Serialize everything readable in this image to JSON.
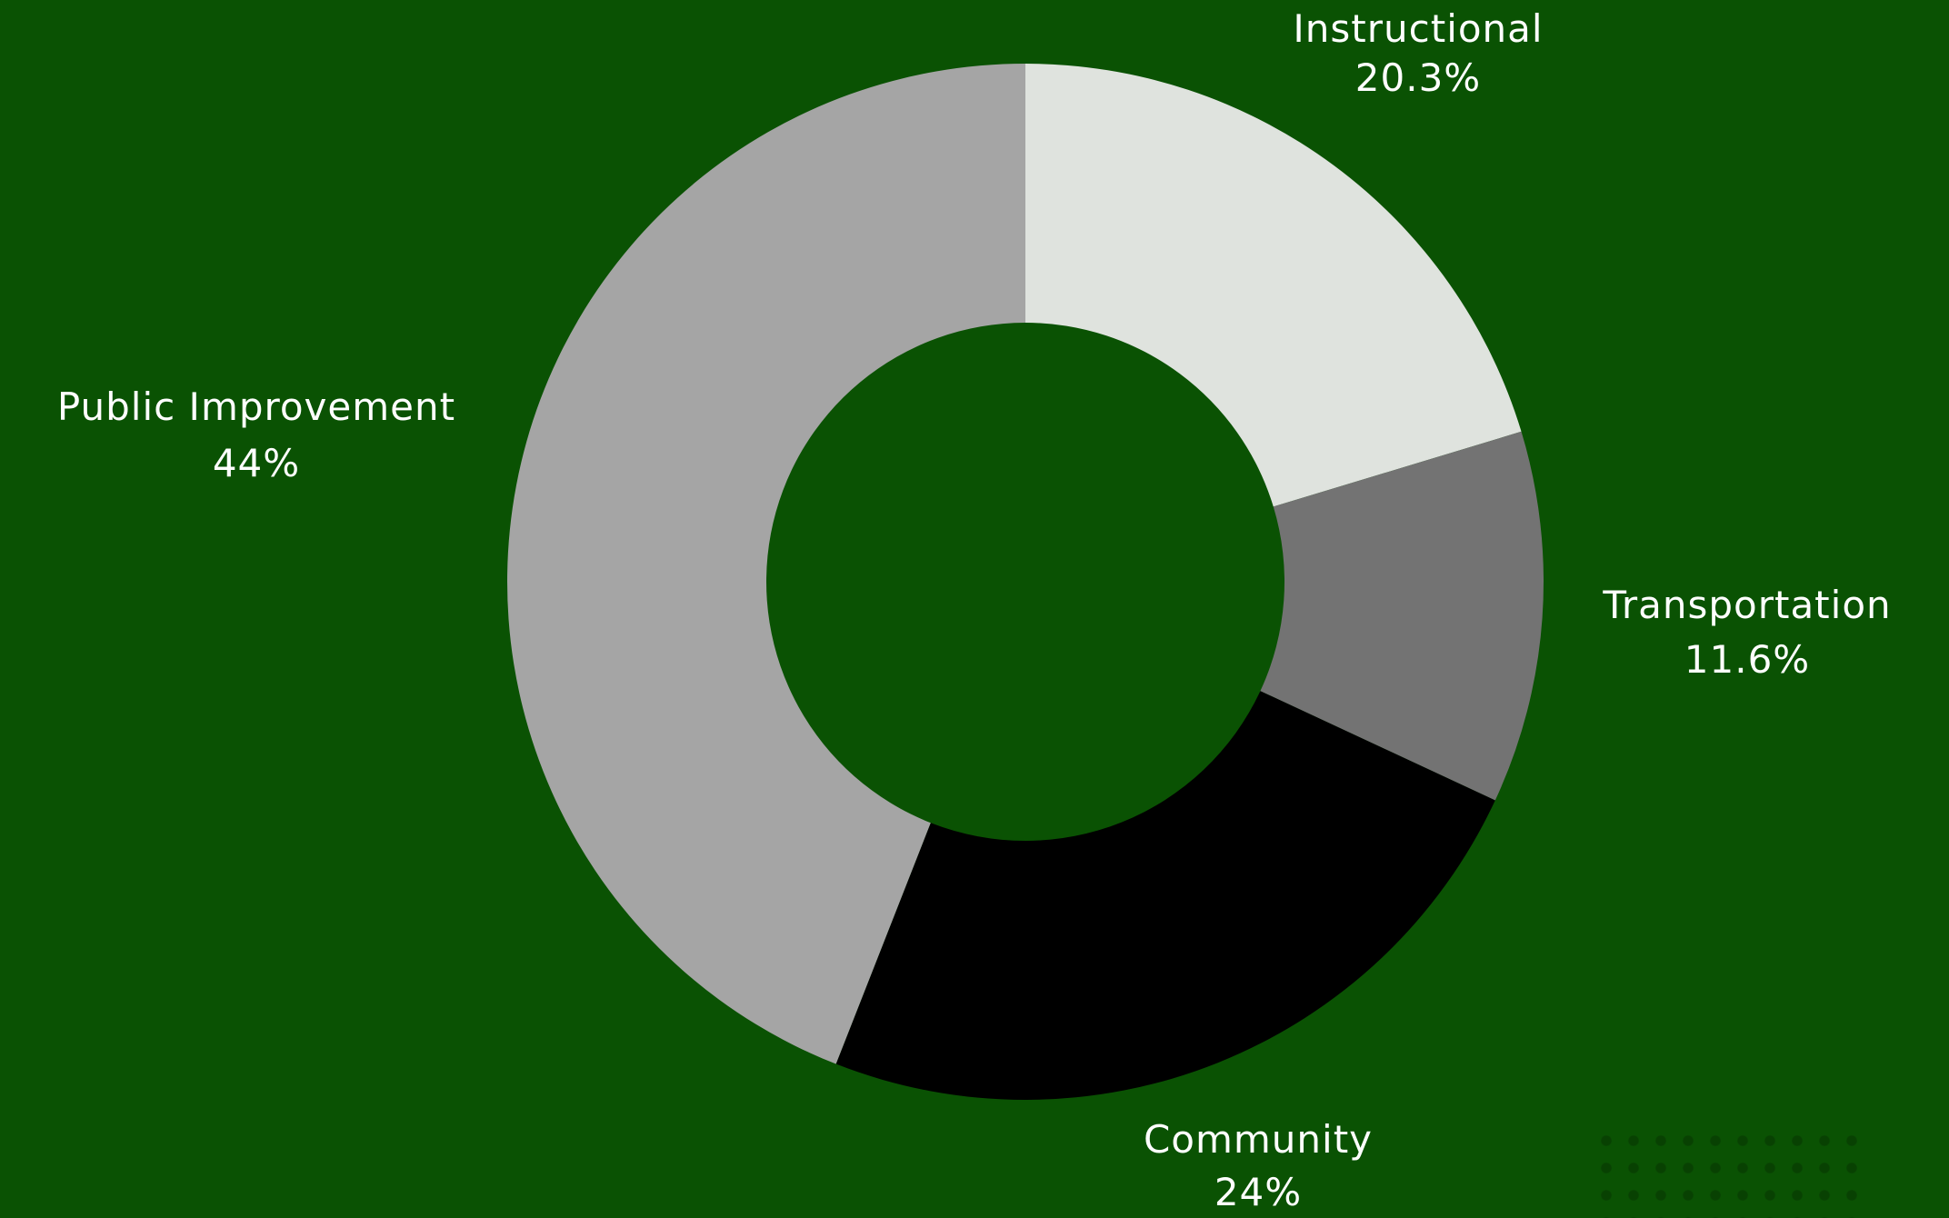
{
  "chart_data": {
    "type": "pie",
    "variant": "donut",
    "title": "",
    "start_angle_deg": 0,
    "direction": "clockwise",
    "slices": [
      {
        "label": "Instructional",
        "value": 20.3,
        "display": "20.3%",
        "color": "#dfe3de"
      },
      {
        "label": "Transportation",
        "value": 11.6,
        "display": "11.6%",
        "color": "#737373"
      },
      {
        "label": "Community",
        "value": 24,
        "display": "24%",
        "color": "#000000"
      },
      {
        "label": "Public Improvement",
        "value": 44,
        "display": "44%",
        "color": "#a5a5a5"
      }
    ]
  },
  "colors": {
    "background": "#0a5203",
    "label_text": "#ffffff"
  }
}
